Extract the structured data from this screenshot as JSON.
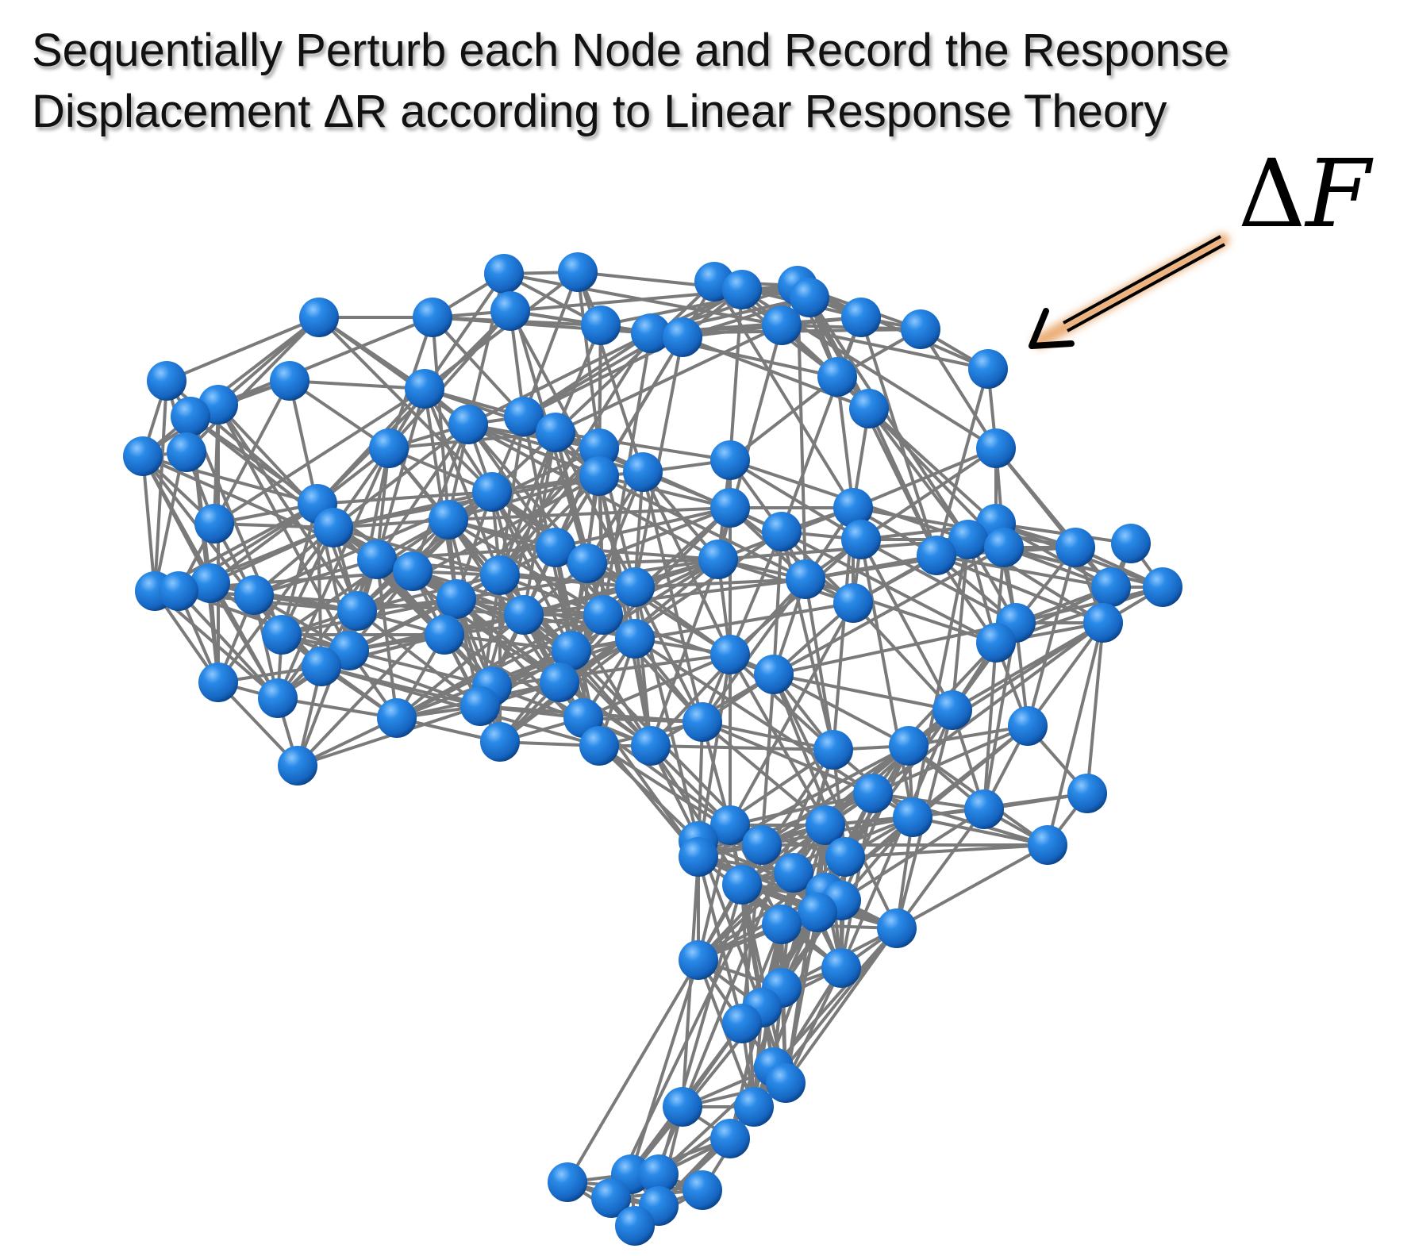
{
  "title": {
    "line1": "Sequentially Perturb each Node and Record the Response",
    "line2": "Displacement ΔR according to Linear Response Theory"
  },
  "force_label": {
    "symbol": "Δ",
    "variable": "F"
  },
  "colors": {
    "node": "#1f78d1",
    "node_highlight": "#6fb8ff",
    "node_shadow": "#0a3f80",
    "edge": "#7a7a7a",
    "arrow": "#000000",
    "arrow_glow": "#e8a060",
    "background": "#ffffff"
  },
  "icons": {
    "arrow": "perturbation-force-arrow-icon",
    "node": "network-node-sphere-icon"
  }
}
